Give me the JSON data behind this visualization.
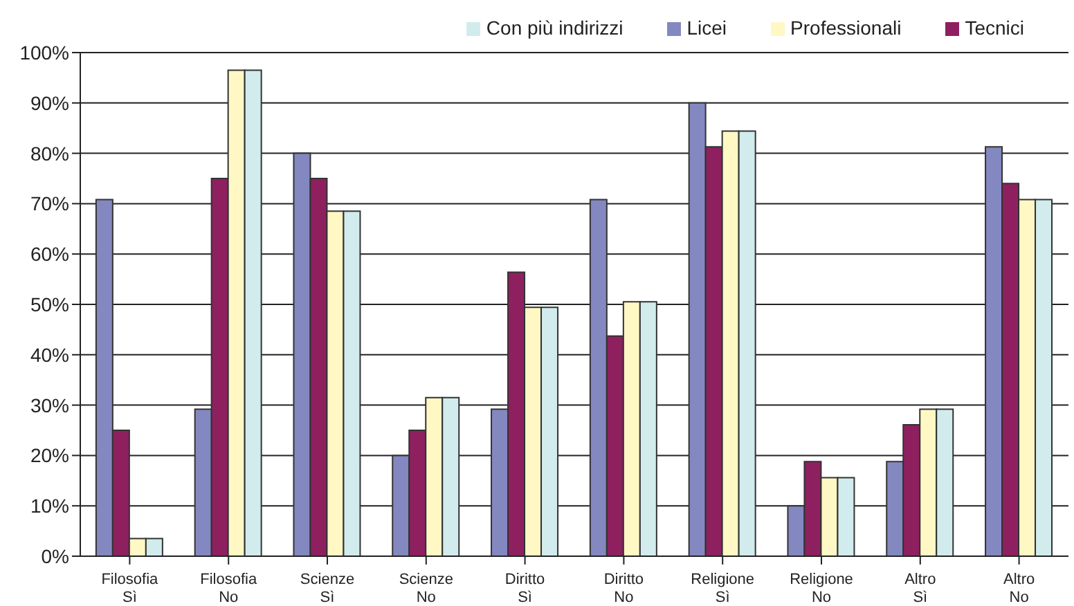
{
  "chart_data": {
    "type": "bar",
    "categories": [
      "Filosofia\nSì",
      "Filosofia\nNo",
      "Scienze\nSì",
      "Scienze\nNo",
      "Diritto\nSì",
      "Diritto\nNo",
      "Religione\nSì",
      "Religione\nNo",
      "Altro\nSì",
      "Altro\nNo"
    ],
    "series": [
      {
        "name": "Licei",
        "color": "#8488c0",
        "values": [
          70.8,
          29.2,
          80,
          20,
          29.2,
          70.8,
          90,
          10,
          18.8,
          81.3
        ]
      },
      {
        "name": "Tecnici",
        "color": "#8e2060",
        "values": [
          25,
          75,
          75,
          25,
          56.4,
          43.7,
          81.3,
          18.8,
          26.1,
          74
        ]
      },
      {
        "name": "Professionali",
        "color": "#fff8c4",
        "values": [
          3.5,
          96.5,
          68.5,
          31.5,
          49.4,
          50.5,
          84.4,
          15.6,
          29.2,
          70.8
        ]
      },
      {
        "name": "Con più indirizzi",
        "color": "#d2ecee",
        "values": [
          3.5,
          96.5,
          68.5,
          31.5,
          49.4,
          50.5,
          84.4,
          15.6,
          29.2,
          70.8
        ]
      }
    ],
    "ylim": [
      0,
      100
    ],
    "yticks": [
      {
        "value": 0,
        "label": "0%"
      },
      {
        "value": 10,
        "label": "10%"
      },
      {
        "value": 20,
        "label": "20%"
      },
      {
        "value": 30,
        "label": "30%"
      },
      {
        "value": 40,
        "label": "40%"
      },
      {
        "value": 50,
        "label": "50%"
      },
      {
        "value": 60,
        "label": "60%"
      },
      {
        "value": 70,
        "label": "70%"
      },
      {
        "value": 80,
        "label": "80%"
      },
      {
        "value": 90,
        "label": "90%"
      },
      {
        "value": 100,
        "label": "100%"
      }
    ],
    "grid": "y",
    "legend": "top right"
  }
}
